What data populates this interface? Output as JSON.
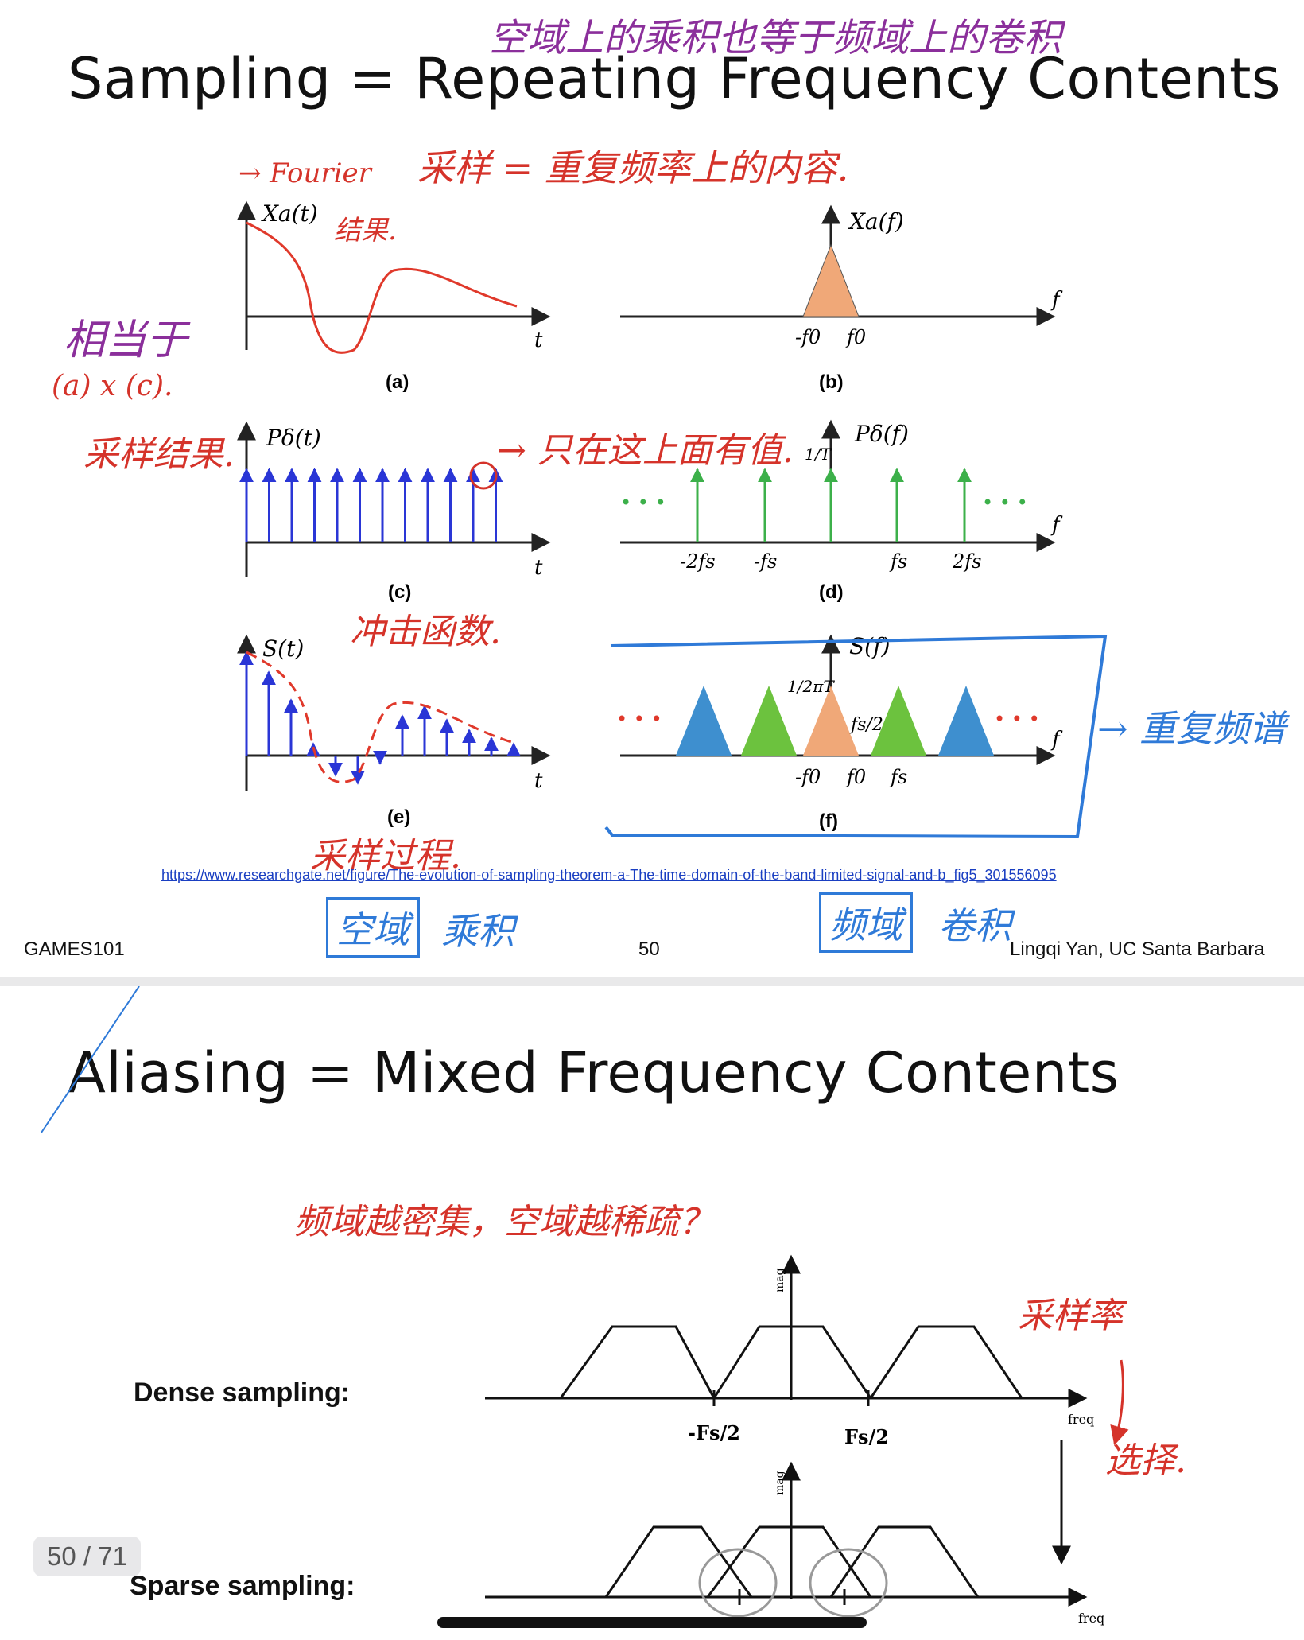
{
  "slide1": {
    "title": "Sampling = Repeating Frequency Contents",
    "annotations": {
      "top_note": "空域上的乘积也等于频域上的卷积",
      "fourier": "→ Fourier",
      "fourier_result": "结果.",
      "sampling_eq": "采样 = 重复频率上的内容.",
      "equivalent": "相当于",
      "equivalent_sub": "(a) x (c).",
      "sample_result": "采样结果.",
      "only_values": "→ 只在这上面有值.",
      "impulse": "冲击函数.",
      "sampling_process": "采样过程.",
      "repeat_spectrum": "→ 重复频谱",
      "spatial_box": "空域",
      "spatial_product": "乘积",
      "freq_box": "频域",
      "freq_conv": "卷积"
    },
    "figure": {
      "panel_labels": [
        "(a)",
        "(b)",
        "(c)",
        "(d)",
        "(e)",
        "(f)"
      ],
      "xa_t": "Xa(t)",
      "xa_f": "Xa(f)",
      "p_t": "Pδ(t)",
      "p_f": "Pδ(f)",
      "s_t": "S(t)",
      "s_f": "S(f)",
      "t_axis": "t",
      "f_axis": "f",
      "ticks_b": [
        "-f0",
        "f0"
      ],
      "ticks_d": [
        "-2fs",
        "-fs",
        "fs",
        "2fs"
      ],
      "ticks_f": [
        "-f0",
        "f0",
        "fs"
      ],
      "one_over_t": "1/T",
      "one_over_2pit": "1/2πT",
      "fs_half": "fs/2",
      "dots": "• • •"
    },
    "source_link": "https://www.researchgate.net/figure/The-evolution-of-sampling-theorem-a-The-time-domain-of-the-band-limited-signal-and-b_fig5_301556095",
    "footer_left": "GAMES101",
    "page_number": "50",
    "footer_right": "Lingqi Yan, UC Santa Barbara"
  },
  "slide2": {
    "title": "Aliasing = Mixed Frequency Contents",
    "annotations": {
      "question": "频域越密集，空域越稀疏？",
      "sample_rate": "采样率",
      "select": "选择."
    },
    "dense_label": "Dense sampling:",
    "sparse_label": "Sparse sampling:",
    "mag": "mag",
    "freq": "freq",
    "neg_fs_half": "-Fs/2",
    "fs_half": "Fs/2"
  },
  "viewer": {
    "page_indicator": "50 / 71"
  },
  "colors": {
    "signal_red": "#e0392b",
    "impulse_blue": "#2a36d6",
    "impulse_green": "#3cb04a",
    "spectrum_orange": "#f0a878",
    "spectrum_blue": "#3e8fcf",
    "spectrum_green": "#6cc23e",
    "ink_red": "#d5332a",
    "ink_purple": "#8b2f9b",
    "ink_blue": "#2f7ad8"
  }
}
